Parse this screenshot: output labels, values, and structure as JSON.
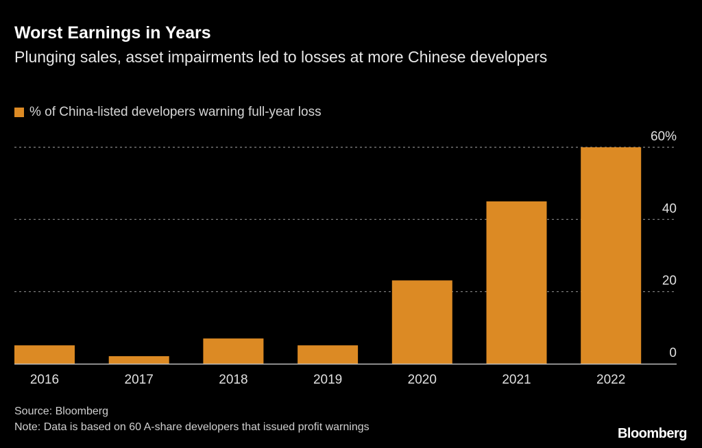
{
  "chart_data": {
    "type": "bar",
    "title": "Worst Earnings in Years",
    "subtitle": "Plunging sales, asset impairments led to losses at more Chinese developers",
    "legend": [
      "% of China-listed developers warning full-year loss"
    ],
    "legend_placement": "top-left",
    "categories": [
      "2016",
      "2017",
      "2018",
      "2019",
      "2020",
      "2021",
      "2022"
    ],
    "series": [
      {
        "name": "% of China-listed developers warning full-year loss",
        "values": [
          5.1,
          2.1,
          7.0,
          5.1,
          23.1,
          45.0,
          60.0
        ],
        "color": "#dc8a24"
      }
    ],
    "ylim": [
      0,
      60
    ],
    "yticks": [
      0,
      20,
      40,
      60
    ],
    "ytick_labels": [
      "0",
      "20",
      "40",
      "60%"
    ],
    "y_axis_side": "right",
    "grid": "horizontal dotted"
  },
  "footer": {
    "source": "Source: Bloomberg",
    "note": "Note: Data is based on 60 A-share developers that issued profit warnings"
  },
  "logo": "Bloomberg"
}
